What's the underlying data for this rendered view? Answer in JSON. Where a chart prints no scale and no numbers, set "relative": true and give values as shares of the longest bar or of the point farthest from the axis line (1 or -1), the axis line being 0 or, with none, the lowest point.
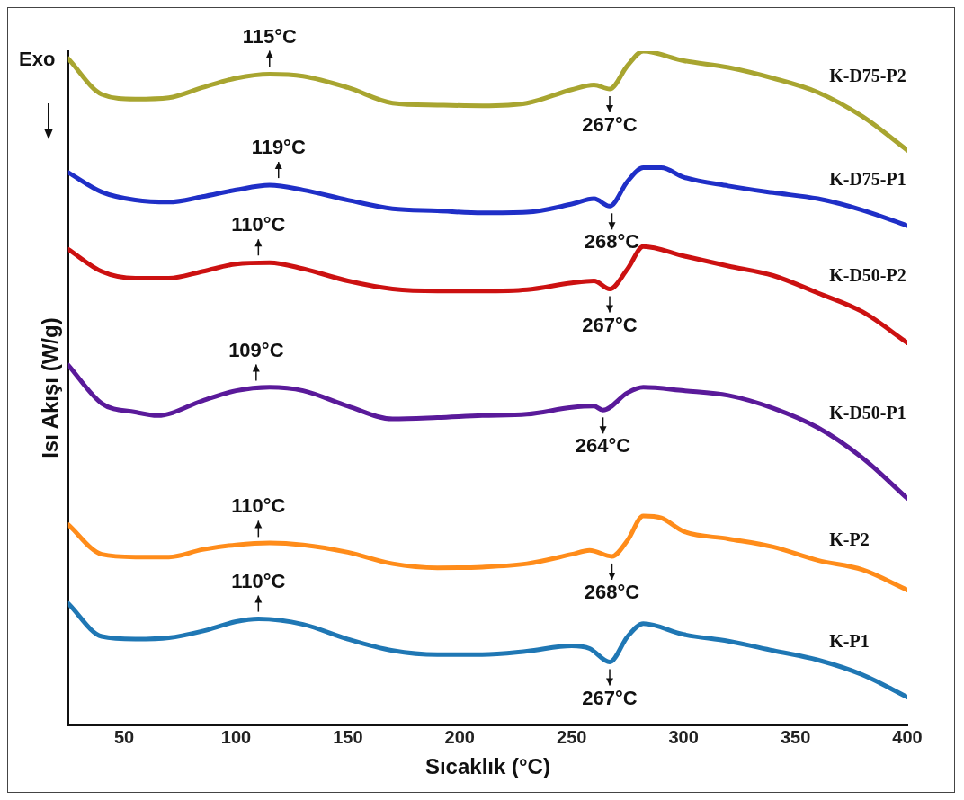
{
  "chart_data": {
    "type": "line",
    "xlabel": "Sıcaklık (°C)",
    "ylabel": "Isı Akışı (W/g)",
    "relative": true,
    "xlim": [
      25,
      400
    ],
    "xticks": [
      50,
      100,
      150,
      200,
      250,
      300,
      350,
      400
    ],
    "grid": false,
    "legend": false,
    "marker": "none",
    "annotations": [
      "Exo",
      {
        "text": "115°C",
        "x": 115,
        "y": 0.966
      },
      {
        "text": "267°C",
        "x": 267,
        "y": 0.944
      },
      {
        "text": "119°C",
        "x": 119,
        "y": 0.801
      },
      {
        "text": "268°C",
        "x": 268,
        "y": 0.77
      },
      {
        "text": "110°C",
        "x": 110,
        "y": 0.686
      },
      {
        "text": "267°C",
        "x": 267,
        "y": 0.647
      },
      {
        "text": "109°C",
        "x": 109,
        "y": 0.5
      },
      {
        "text": "264°C",
        "x": 264,
        "y": 0.467
      },
      {
        "text": "110°C",
        "x": 110,
        "y": 0.268
      },
      {
        "text": "268°C",
        "x": 268,
        "y": 0.25
      },
      {
        "text": "110°C",
        "x": 110,
        "y": 0.157
      },
      {
        "text": "267°C",
        "x": 267,
        "y": 0.093
      }
    ],
    "series": [
      {
        "name": "K-D75-P2",
        "color": "#a8a530",
        "x": [
          25,
          40,
          55,
          70,
          85,
          100,
          115,
          130,
          150,
          170,
          190,
          210,
          230,
          250,
          260,
          267,
          275,
          282,
          300,
          320,
          340,
          360,
          380,
          400
        ],
        "values": [
          0.989,
          0.936,
          0.929,
          0.931,
          0.946,
          0.96,
          0.966,
          0.963,
          0.946,
          0.923,
          0.92,
          0.919,
          0.923,
          0.943,
          0.95,
          0.944,
          0.979,
          1.0,
          0.986,
          0.976,
          0.96,
          0.939,
          0.903,
          0.853
        ]
      },
      {
        "name": "K-D75-P1",
        "color": "#1f2fc7",
        "x": [
          25,
          40,
          55,
          70,
          85,
          100,
          115,
          130,
          150,
          170,
          190,
          210,
          230,
          250,
          260,
          267,
          275,
          282,
          290,
          300,
          320,
          340,
          360,
          380,
          400
        ],
        "values": [
          0.82,
          0.791,
          0.779,
          0.776,
          0.784,
          0.794,
          0.801,
          0.794,
          0.779,
          0.766,
          0.763,
          0.76,
          0.761,
          0.773,
          0.781,
          0.77,
          0.807,
          0.827,
          0.827,
          0.813,
          0.8,
          0.79,
          0.781,
          0.764,
          0.741
        ]
      },
      {
        "name": "K-D50-P2",
        "color": "#cc1111",
        "x": [
          25,
          40,
          55,
          70,
          85,
          100,
          115,
          130,
          150,
          170,
          190,
          210,
          230,
          250,
          260,
          267,
          275,
          282,
          300,
          320,
          340,
          360,
          380,
          400
        ],
        "values": [
          0.706,
          0.673,
          0.663,
          0.663,
          0.673,
          0.684,
          0.686,
          0.677,
          0.659,
          0.647,
          0.644,
          0.644,
          0.646,
          0.656,
          0.659,
          0.647,
          0.677,
          0.71,
          0.696,
          0.681,
          0.667,
          0.641,
          0.613,
          0.567
        ]
      },
      {
        "name": "K-D50-P1",
        "color": "#5a1a9a",
        "x": [
          25,
          40,
          55,
          65,
          85,
          100,
          115,
          130,
          150,
          170,
          190,
          210,
          230,
          250,
          260,
          264,
          275,
          282,
          300,
          320,
          340,
          360,
          380,
          400
        ],
        "values": [
          0.534,
          0.477,
          0.464,
          0.459,
          0.481,
          0.496,
          0.501,
          0.496,
          0.473,
          0.454,
          0.456,
          0.459,
          0.461,
          0.471,
          0.473,
          0.467,
          0.493,
          0.501,
          0.496,
          0.489,
          0.47,
          0.441,
          0.396,
          0.336
        ]
      },
      {
        "name": "K-P2",
        "color": "#ff8c1a",
        "x": [
          25,
          40,
          55,
          70,
          85,
          100,
          115,
          130,
          150,
          170,
          190,
          210,
          230,
          250,
          258,
          268,
          275,
          282,
          290,
          300,
          320,
          340,
          360,
          380,
          400
        ],
        "values": [
          0.297,
          0.253,
          0.249,
          0.249,
          0.26,
          0.267,
          0.27,
          0.267,
          0.256,
          0.239,
          0.233,
          0.234,
          0.239,
          0.253,
          0.259,
          0.25,
          0.274,
          0.31,
          0.307,
          0.287,
          0.276,
          0.264,
          0.244,
          0.23,
          0.2
        ]
      },
      {
        "name": "K-P1",
        "color": "#1f77b4",
        "x": [
          25,
          40,
          55,
          70,
          85,
          100,
          110,
          130,
          150,
          170,
          190,
          210,
          230,
          250,
          258,
          267,
          275,
          282,
          300,
          320,
          340,
          360,
          380,
          400
        ],
        "values": [
          0.18,
          0.131,
          0.127,
          0.129,
          0.139,
          0.153,
          0.157,
          0.149,
          0.127,
          0.11,
          0.104,
          0.104,
          0.109,
          0.117,
          0.113,
          0.093,
          0.131,
          0.15,
          0.134,
          0.124,
          0.11,
          0.096,
          0.074,
          0.041
        ]
      }
    ]
  }
}
